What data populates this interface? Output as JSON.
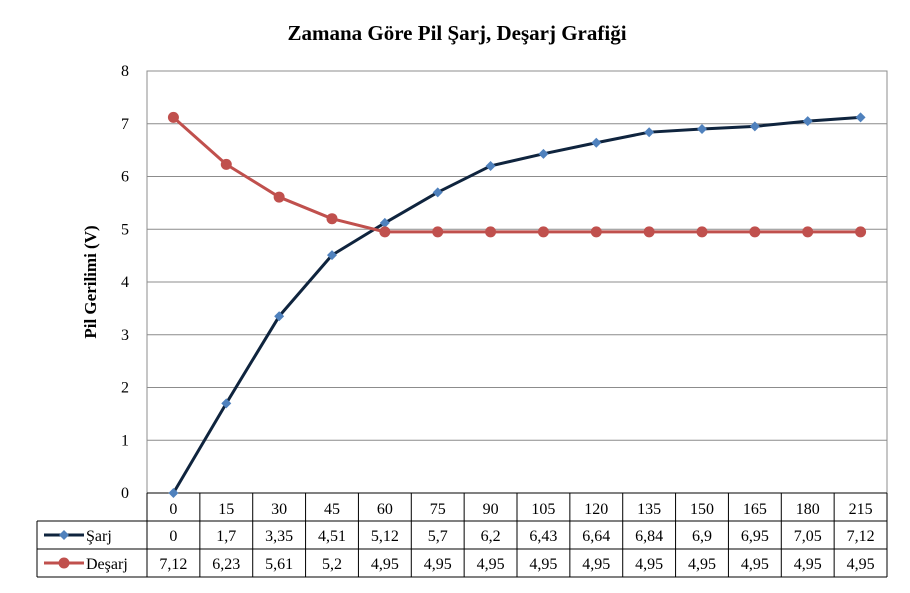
{
  "chart_data": {
    "type": "line",
    "title": "Zamana  Göre Pil Şarj, Deşarj Grafiği",
    "xlabel": "",
    "ylabel": "Pil Gerilimi  (V)",
    "ylim": [
      0,
      8
    ],
    "yticks": [
      "0",
      "1",
      "2",
      "3",
      "4",
      "5",
      "6",
      "7",
      "8"
    ],
    "categories": [
      "0",
      "15",
      "30",
      "45",
      "60",
      "75",
      "90",
      "105",
      "120",
      "135",
      "150",
      "165",
      "180",
      "215"
    ],
    "grid": true,
    "legend": "data-table",
    "series": [
      {
        "name": "Şarj",
        "color": "#0f243e",
        "marker": "diamond",
        "marker_color": "#4f81bd",
        "values": [
          0,
          1.7,
          3.35,
          4.51,
          5.12,
          5.7,
          6.2,
          6.43,
          6.64,
          6.84,
          6.9,
          6.95,
          7.05,
          7.12
        ],
        "labels": [
          "0",
          "1,7",
          "3,35",
          "4,51",
          "5,12",
          "5,7",
          "6,2",
          "6,43",
          "6,64",
          "6,84",
          "6,9",
          "6,95",
          "7,05",
          "7,12"
        ]
      },
      {
        "name": "Deşarj",
        "color": "#c0504d",
        "marker": "circle",
        "marker_color": "#c0504d",
        "values": [
          7.12,
          6.23,
          5.61,
          5.2,
          4.95,
          4.95,
          4.95,
          4.95,
          4.95,
          4.95,
          4.95,
          4.95,
          4.95,
          4.95
        ],
        "labels": [
          "7,12",
          "6,23",
          "5,61",
          "5,2",
          "4,95",
          "4,95",
          "4,95",
          "4,95",
          "4,95",
          "4,95",
          "4,95",
          "4,95",
          "4,95",
          "4,95"
        ]
      }
    ]
  }
}
